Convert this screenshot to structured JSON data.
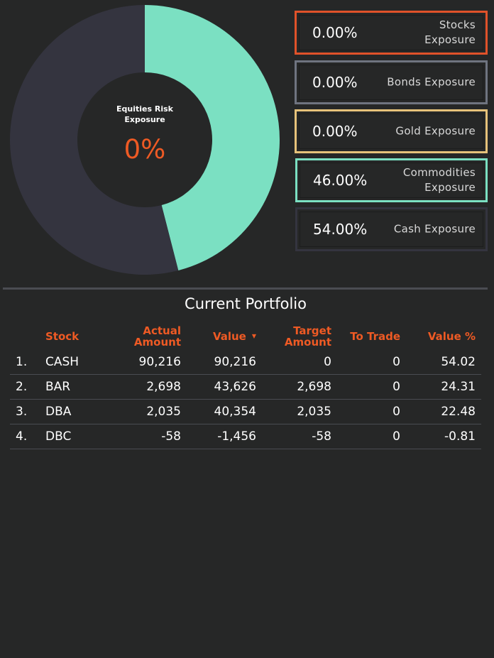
{
  "donut": {
    "title_line1": "Equities Risk",
    "title_line2": "Exposure",
    "value": "0%",
    "segments": [
      {
        "label": "Commodities",
        "fraction": 0.46,
        "color": "#7be0c2"
      },
      {
        "label": "Cash",
        "fraction": 0.54,
        "color": "#34343f"
      }
    ],
    "center_color": "#262727"
  },
  "exposures": [
    {
      "pct": "0.00%",
      "label_l1": "Stocks",
      "label_l2": "Exposure",
      "border": "#e0522a"
    },
    {
      "pct": "0.00%",
      "label_l1": "Bonds Exposure",
      "label_l2": "",
      "border": "#6f7480"
    },
    {
      "pct": "0.00%",
      "label_l1": "Gold Exposure",
      "label_l2": "",
      "border": "#e6c27a"
    },
    {
      "pct": "46.00%",
      "label_l1": "Commodities",
      "label_l2": "Exposure",
      "border": "#7be0c2"
    },
    {
      "pct": "54.00%",
      "label_l1": "Cash Exposure",
      "label_l2": "",
      "border": "#34343f"
    }
  ],
  "portfolio": {
    "title": "Current Portfolio",
    "headers": {
      "stock": "Stock",
      "actual_l1": "Actual",
      "actual_l2": "Amount",
      "value": "Value",
      "target_l1": "Target",
      "target_l2": "Amount",
      "to_trade": "To Trade",
      "value_pct": "Value %"
    },
    "sort_icon": "sort-desc-icon",
    "rows": [
      {
        "idx": "1.",
        "stock": "CASH",
        "actual": "90,216",
        "value": "90,216",
        "target": "0",
        "to_trade": "0",
        "value_pct": "54.02"
      },
      {
        "idx": "2.",
        "stock": "BAR",
        "actual": "2,698",
        "value": "43,626",
        "target": "2,698",
        "to_trade": "0",
        "value_pct": "24.31"
      },
      {
        "idx": "3.",
        "stock": "DBA",
        "actual": "2,035",
        "value": "40,354",
        "target": "2,035",
        "to_trade": "0",
        "value_pct": "22.48"
      },
      {
        "idx": "4.",
        "stock": "DBC",
        "actual": "-58",
        "value": "-1,456",
        "target": "-58",
        "to_trade": "0",
        "value_pct": "-0.81"
      }
    ]
  },
  "colors": {
    "background": "#262727",
    "accent": "#ee5a24",
    "divider": "#4a4c52"
  }
}
